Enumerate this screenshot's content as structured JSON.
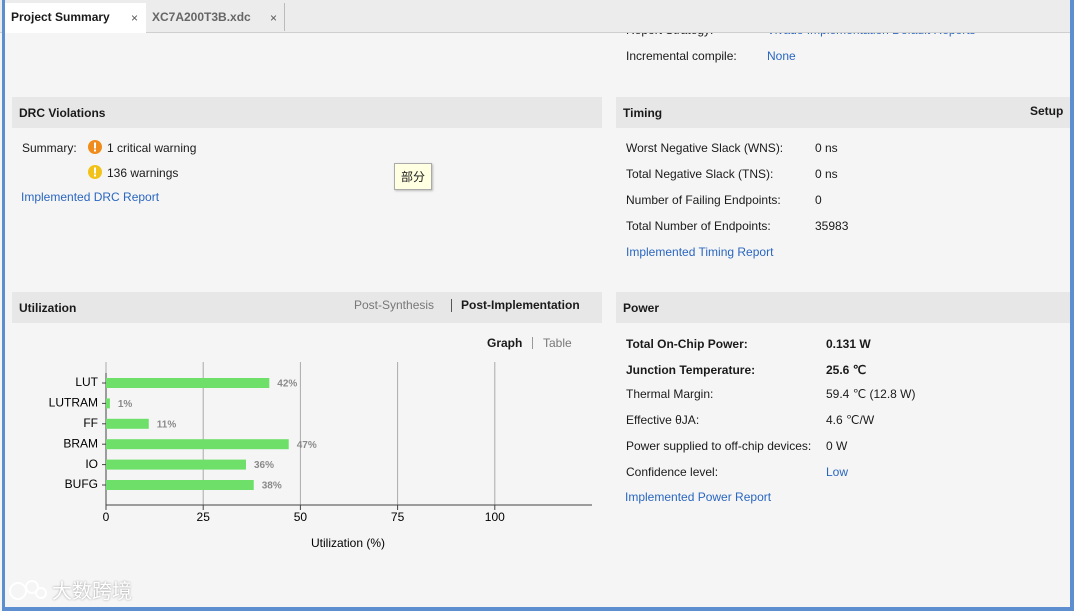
{
  "tabs": [
    "Project Summary",
    "XC7A200T3B.xdc"
  ],
  "settings": {
    "rows": [
      [
        "Report Strategy:",
        "Vivado Implementation Default Reports"
      ],
      [
        "Incremental compile:",
        "None"
      ]
    ]
  },
  "drc": {
    "title": "DRC Violations",
    "summary_label": "Summary:",
    "items": [
      "1 critical warning",
      "136 warnings"
    ],
    "link": "Implemented DRC Report"
  },
  "tooltip": "部分",
  "timing": {
    "title": "Timing",
    "setup": "Setup",
    "rows": [
      [
        "Worst Negative Slack (WNS):",
        "0 ns"
      ],
      [
        "Total Negative Slack (TNS):",
        "0 ns"
      ],
      [
        "Number of Failing Endpoints:",
        "0"
      ],
      [
        "Total Number of Endpoints:",
        "35983"
      ]
    ],
    "link": "Implemented Timing Report"
  },
  "utilization": {
    "title": "Utilization",
    "views": [
      "Post-Synthesis",
      "Post-Implementation"
    ],
    "modes": [
      "Graph",
      "Table"
    ]
  },
  "chart_data": {
    "type": "bar",
    "orientation": "horizontal",
    "categories": [
      "LUT",
      "LUTRAM",
      "FF",
      "BRAM",
      "IO",
      "BUFG"
    ],
    "values": [
      42,
      1,
      11,
      47,
      36,
      38
    ],
    "value_labels": [
      "42%",
      "1%",
      "11%",
      "47%",
      "36%",
      "38%"
    ],
    "xlim": [
      0,
      125
    ],
    "xticks": [
      0,
      25,
      50,
      75,
      100
    ],
    "xlabel": "Utilization (%)",
    "color": "#6ee06a",
    "grid": true
  },
  "power": {
    "title": "Power",
    "rows": [
      [
        "Total On-Chip Power:",
        "0.131 W"
      ],
      [
        "Junction Temperature:",
        "25.6 ℃"
      ],
      [
        "Thermal Margin:",
        "59.4 ℃ (12.8 W)"
      ],
      [
        "Effective θJA:",
        "4.6 ℃/W"
      ],
      [
        "Power supplied to off-chip devices:",
        "0 W"
      ],
      [
        "Confidence level:",
        "Low"
      ]
    ],
    "link": "Implemented Power Report"
  },
  "watermark": "大数跨境"
}
